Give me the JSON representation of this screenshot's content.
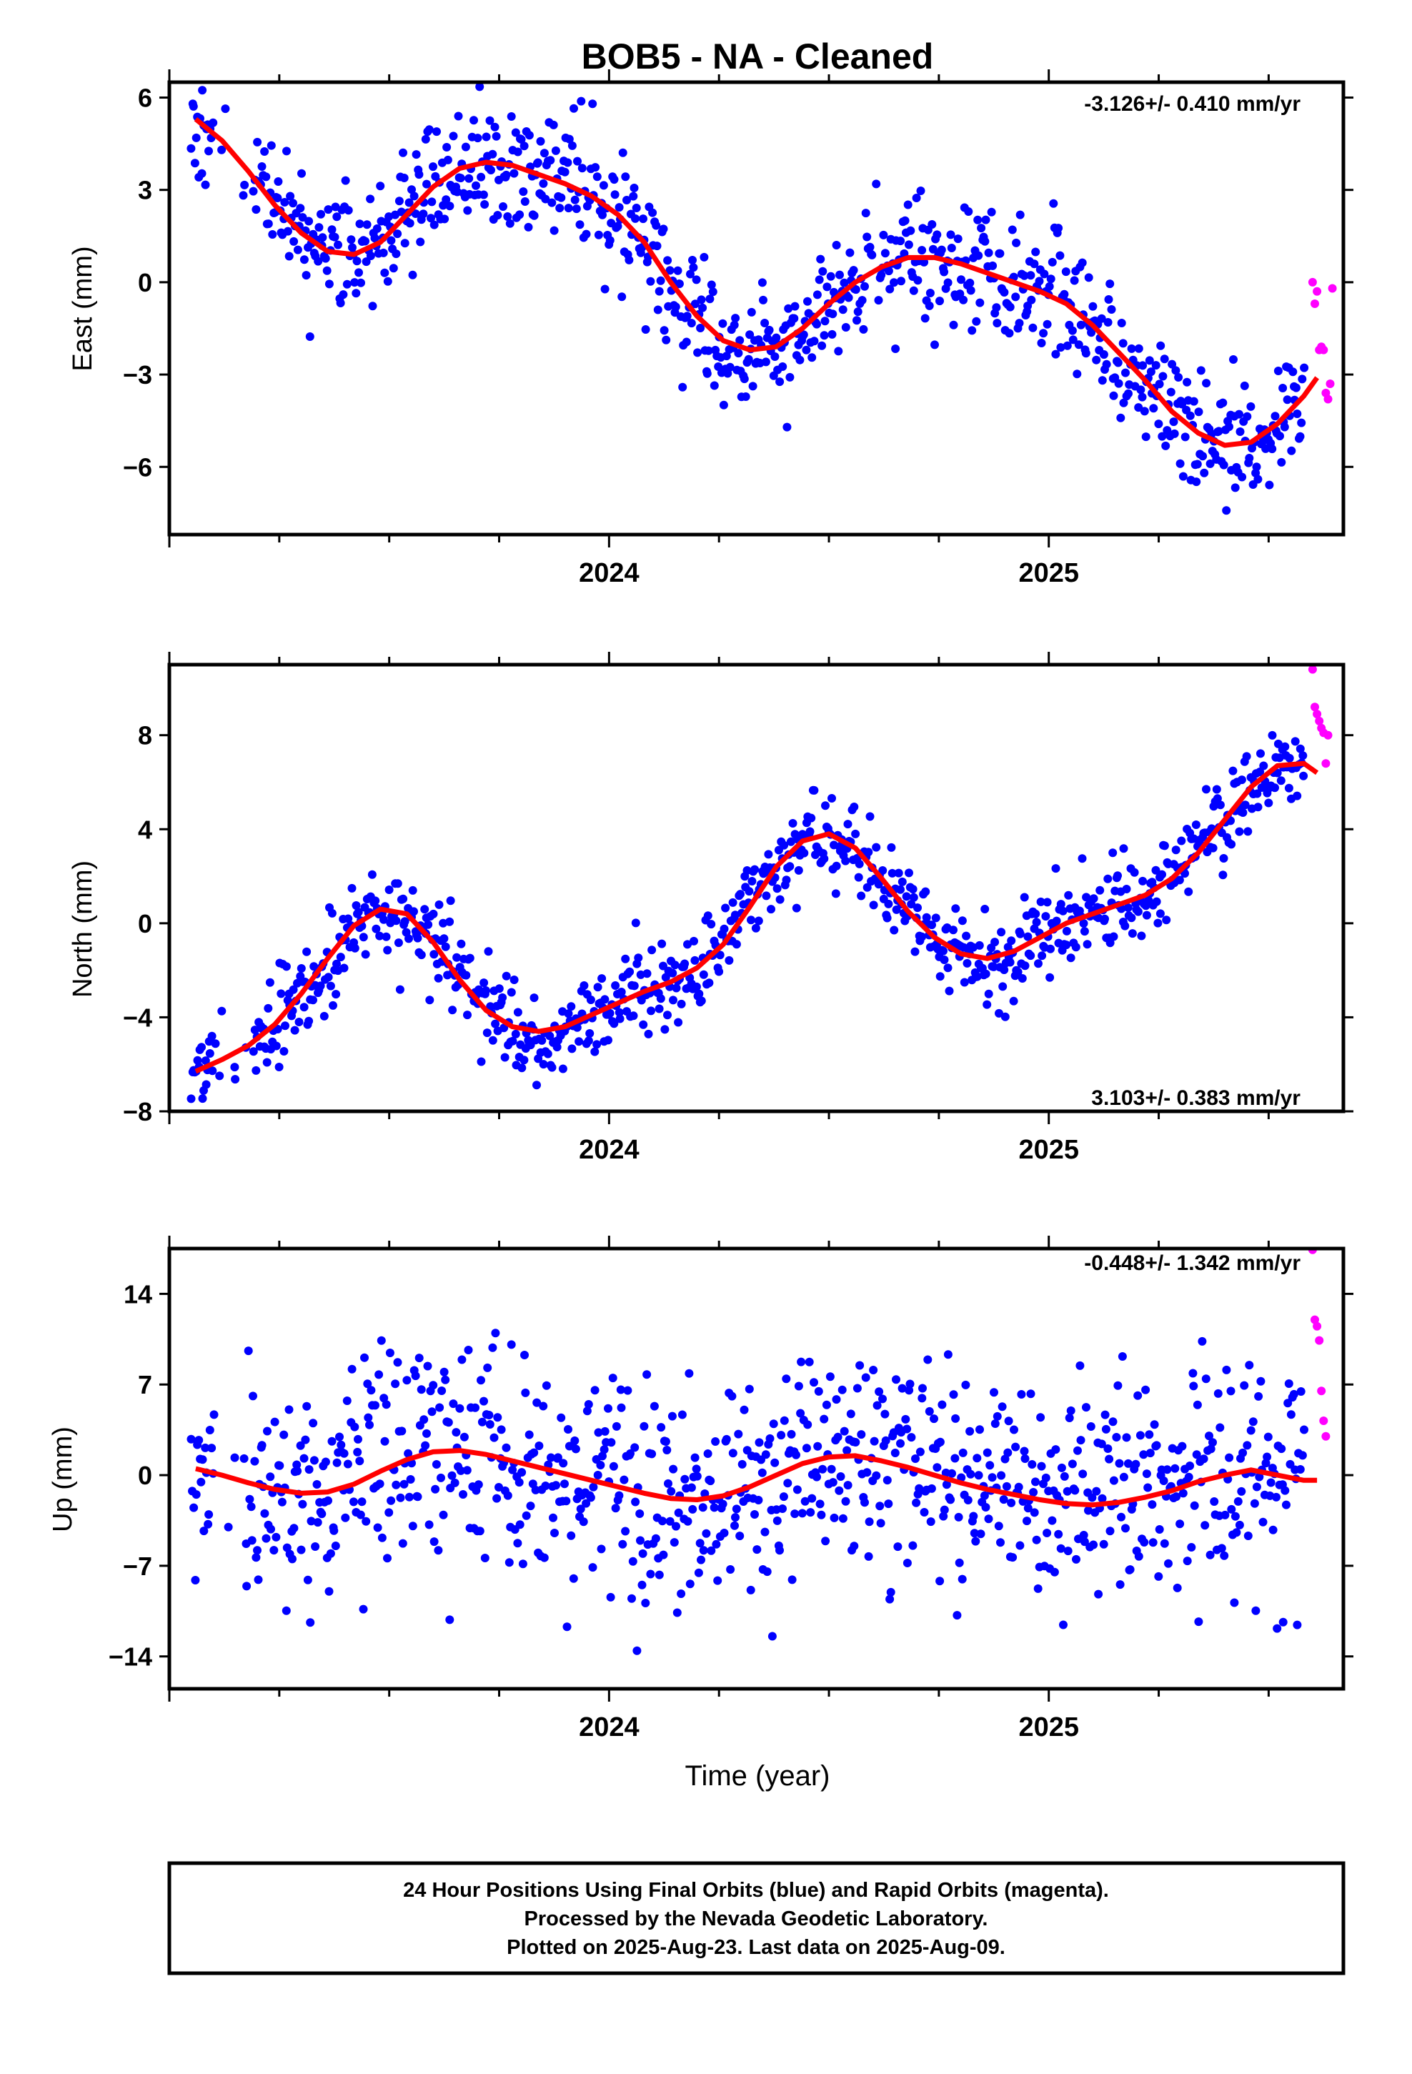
{
  "title": "BOB5  - NA - Cleaned",
  "xlabel": "Time (year)",
  "colors": {
    "final": "#0000ff",
    "rapid": "#ff00ff",
    "model": "#ff0000",
    "axes": "#000000"
  },
  "footer": {
    "lines": [
      "24 Hour Positions Using Final Orbits (blue) and Rapid Orbits (magenta).",
      "Processed by the Nevada Geodetic Laboratory.",
      "Plotted on 2025-Aug-23. Last data on 2025-Aug-09."
    ]
  },
  "chart_data": [
    {
      "type": "scatter",
      "panel": "east",
      "ylabel": "East (mm)",
      "annotation": "-3.126+/- 0.410 mm/yr",
      "xlim": [
        2023.0,
        2025.67
      ],
      "ylim": [
        -8.2,
        6.5
      ],
      "yticks": [
        -6,
        -3,
        0,
        3,
        6
      ],
      "xticks": [
        2024,
        2025
      ],
      "xtick_labels": [
        "2024",
        "2025"
      ],
      "grid": false,
      "model_curve": {
        "x": [
          2023.06,
          2023.12,
          2023.18,
          2023.24,
          2023.3,
          2023.36,
          2023.42,
          2023.48,
          2023.54,
          2023.6,
          2023.66,
          2023.72,
          2023.78,
          2023.84,
          2023.9,
          2023.96,
          2024.02,
          2024.08,
          2024.14,
          2024.2,
          2024.26,
          2024.32,
          2024.38,
          2024.44,
          2024.5,
          2024.56,
          2024.62,
          2024.68,
          2024.74,
          2024.8,
          2024.86,
          2024.92,
          2024.98,
          2025.04,
          2025.1,
          2025.16,
          2025.22,
          2025.28,
          2025.34,
          2025.4,
          2025.46,
          2025.52,
          2025.58,
          2025.61
        ],
        "y": [
          5.3,
          4.6,
          3.6,
          2.5,
          1.6,
          1.0,
          0.9,
          1.3,
          2.2,
          3.1,
          3.7,
          3.9,
          3.8,
          3.5,
          3.2,
          2.8,
          2.2,
          1.3,
          0.0,
          -1.1,
          -1.9,
          -2.2,
          -2.1,
          -1.5,
          -0.7,
          0.0,
          0.5,
          0.8,
          0.8,
          0.6,
          0.3,
          0.0,
          -0.3,
          -0.7,
          -1.4,
          -2.3,
          -3.2,
          -4.2,
          -4.9,
          -5.3,
          -5.2,
          -4.6,
          -3.7,
          -3.1
        ]
      },
      "series": [
        {
          "name": "Final Orbits",
          "color": "#0000ff",
          "marker": "dot",
          "n_points": 880,
          "seed": 11,
          "x_range": [
            2023.05,
            2025.58
          ],
          "noise_mm": 1.0,
          "gaps": [
            [
              2023.1,
              2023.19
            ],
            [
              2024.6,
              2024.61
            ]
          ]
        },
        {
          "name": "Rapid Orbits",
          "color": "#ff00ff",
          "marker": "dot",
          "x": [
            2025.6,
            2025.605,
            2025.61,
            2025.615,
            2025.62,
            2025.625,
            2025.63,
            2025.635,
            2025.64,
            2025.645
          ],
          "y": [
            0.0,
            -0.7,
            -0.3,
            -2.2,
            -2.1,
            -2.2,
            -3.6,
            -3.8,
            -3.3,
            -0.2
          ]
        }
      ]
    },
    {
      "type": "scatter",
      "panel": "north",
      "ylabel": "North (mm)",
      "annotation": "3.103+/- 0.383 mm/yr",
      "xlim": [
        2023.0,
        2025.67
      ],
      "ylim": [
        -8.0,
        11.0
      ],
      "yticks": [
        -8,
        -4,
        0,
        4,
        8
      ],
      "xticks": [
        2024,
        2025
      ],
      "xtick_labels": [
        "2024",
        "2025"
      ],
      "grid": false,
      "model_curve": {
        "x": [
          2023.06,
          2023.12,
          2023.18,
          2023.24,
          2023.3,
          2023.36,
          2023.42,
          2023.48,
          2023.54,
          2023.6,
          2023.66,
          2023.72,
          2023.78,
          2023.84,
          2023.9,
          2023.96,
          2024.02,
          2024.08,
          2024.14,
          2024.2,
          2024.26,
          2024.32,
          2024.38,
          2024.44,
          2024.5,
          2024.56,
          2024.62,
          2024.68,
          2024.74,
          2024.8,
          2024.86,
          2024.92,
          2024.98,
          2025.04,
          2025.1,
          2025.16,
          2025.22,
          2025.28,
          2025.34,
          2025.4,
          2025.46,
          2025.52,
          2025.58,
          2025.61
        ],
        "y": [
          -6.3,
          -5.8,
          -5.2,
          -4.3,
          -3.0,
          -1.5,
          -0.1,
          0.6,
          0.4,
          -0.8,
          -2.4,
          -3.7,
          -4.4,
          -4.6,
          -4.4,
          -3.9,
          -3.4,
          -2.9,
          -2.5,
          -1.9,
          -0.9,
          0.7,
          2.4,
          3.5,
          3.8,
          3.2,
          1.9,
          0.5,
          -0.6,
          -1.3,
          -1.5,
          -1.2,
          -0.6,
          0.0,
          0.4,
          0.8,
          1.2,
          1.9,
          3.0,
          4.4,
          5.8,
          6.7,
          6.8,
          6.4
        ]
      },
      "series": [
        {
          "name": "Final Orbits",
          "color": "#0000ff",
          "marker": "dot",
          "n_points": 880,
          "seed": 23,
          "x_range": [
            2023.05,
            2025.58
          ],
          "noise_mm": 0.9,
          "gaps": [
            [
              2023.1,
              2023.19
            ]
          ]
        },
        {
          "name": "Rapid Orbits",
          "color": "#ff00ff",
          "marker": "dot",
          "x": [
            2025.6,
            2025.605,
            2025.61,
            2025.615,
            2025.62,
            2025.625,
            2025.63,
            2025.635
          ],
          "y": [
            10.8,
            9.2,
            8.9,
            8.6,
            8.3,
            8.1,
            6.8,
            8.0
          ]
        }
      ]
    },
    {
      "type": "scatter",
      "panel": "up",
      "ylabel": "Up (mm)",
      "annotation": "-0.448+/- 1.342 mm/yr",
      "xlim": [
        2023.0,
        2025.67
      ],
      "ylim": [
        -16.5,
        17.5
      ],
      "yticks": [
        -14,
        -7,
        0,
        7,
        14
      ],
      "xticks": [
        2024,
        2025
      ],
      "xtick_labels": [
        "2024",
        "2025"
      ],
      "grid": false,
      "model_curve": {
        "x": [
          2023.06,
          2023.12,
          2023.18,
          2023.24,
          2023.3,
          2023.36,
          2023.42,
          2023.48,
          2023.54,
          2023.6,
          2023.66,
          2023.72,
          2023.78,
          2023.84,
          2023.9,
          2023.96,
          2024.02,
          2024.08,
          2024.14,
          2024.2,
          2024.26,
          2024.32,
          2024.38,
          2024.44,
          2024.5,
          2024.56,
          2024.62,
          2024.68,
          2024.74,
          2024.8,
          2024.86,
          2024.92,
          2024.98,
          2025.04,
          2025.1,
          2025.16,
          2025.22,
          2025.28,
          2025.34,
          2025.4,
          2025.46,
          2025.52,
          2025.58,
          2025.61
        ],
        "y": [
          0.5,
          0.0,
          -0.6,
          -1.1,
          -1.4,
          -1.3,
          -0.7,
          0.3,
          1.2,
          1.8,
          1.9,
          1.6,
          1.1,
          0.6,
          0.1,
          -0.4,
          -0.9,
          -1.4,
          -1.8,
          -1.9,
          -1.6,
          -0.9,
          0.0,
          0.9,
          1.4,
          1.5,
          1.1,
          0.6,
          0.0,
          -0.6,
          -1.1,
          -1.5,
          -1.9,
          -2.2,
          -2.3,
          -2.1,
          -1.7,
          -1.2,
          -0.5,
          0.0,
          0.4,
          0.0,
          -0.4,
          -0.4
        ]
      },
      "series": [
        {
          "name": "Final Orbits",
          "color": "#0000ff",
          "marker": "dot",
          "n_points": 880,
          "seed": 37,
          "x_range": [
            2023.05,
            2025.58
          ],
          "noise_mm": 4.2,
          "gaps": [
            [
              2023.1,
              2023.17
            ]
          ]
        },
        {
          "name": "Rapid Orbits",
          "color": "#ff00ff",
          "marker": "dot",
          "x": [
            2025.6,
            2025.605,
            2025.61,
            2025.615,
            2025.62,
            2025.625,
            2025.63
          ],
          "y": [
            17.4,
            12.0,
            11.5,
            10.4,
            6.5,
            4.2,
            3.0
          ]
        }
      ]
    }
  ]
}
